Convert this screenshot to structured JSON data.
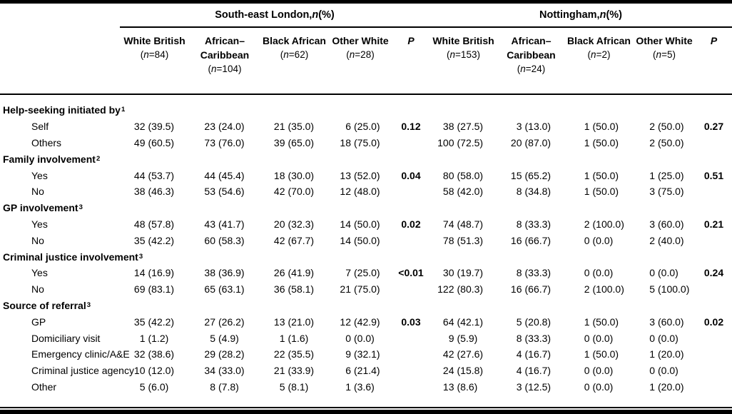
{
  "table": {
    "regions": [
      {
        "title": "South-east London, n (%)",
        "p_label": "P",
        "columns": [
          {
            "name": "White British",
            "n": "(n=84)"
          },
          {
            "name": "African–Caribbean",
            "n": "(n=104)"
          },
          {
            "name": "Black African",
            "n": "(n=62)"
          },
          {
            "name": "Other White",
            "n": "(n=28)"
          }
        ]
      },
      {
        "title": "Nottingham, n (%)",
        "p_label": "P",
        "columns": [
          {
            "name": "White British",
            "n": "(n=153)"
          },
          {
            "name": "African–Caribbean",
            "n": "(n=24)"
          },
          {
            "name": "Black African",
            "n": "(n=2)"
          },
          {
            "name": "Other White",
            "n": "(n=5)"
          }
        ]
      }
    ],
    "sections": [
      {
        "label": "Help-seeking initiated by",
        "footnote": "1",
        "rows": [
          {
            "label": "Self",
            "sel": [
              [
                "32",
                "(39.5)"
              ],
              [
                "23",
                "(24.0)"
              ],
              [
                "21",
                "(35.0)"
              ],
              [
                "6",
                "(25.0)"
              ]
            ],
            "p_sel": "0.12",
            "nott": [
              [
                "38",
                "(27.5)"
              ],
              [
                "3",
                "(13.0)"
              ],
              [
                "1",
                "(50.0)"
              ],
              [
                "2",
                "(50.0)"
              ]
            ],
            "p_nott": "0.27"
          },
          {
            "label": "Others",
            "sel": [
              [
                "49",
                "(60.5)"
              ],
              [
                "73",
                "(76.0)"
              ],
              [
                "39",
                "(65.0)"
              ],
              [
                "18",
                "(75.0)"
              ]
            ],
            "p_sel": "",
            "nott": [
              [
                "100",
                "(72.5)"
              ],
              [
                "20",
                "(87.0)"
              ],
              [
                "1",
                "(50.0)"
              ],
              [
                "2",
                "(50.0)"
              ]
            ],
            "p_nott": ""
          }
        ]
      },
      {
        "label": "Family involvement",
        "footnote": "2",
        "rows": [
          {
            "label": "Yes",
            "sel": [
              [
                "44",
                "(53.7)"
              ],
              [
                "44",
                "(45.4)"
              ],
              [
                "18",
                "(30.0)"
              ],
              [
                "13",
                "(52.0)"
              ]
            ],
            "p_sel": "0.04",
            "nott": [
              [
                "80",
                "(58.0)"
              ],
              [
                "15",
                "(65.2)"
              ],
              [
                "1",
                "(50.0)"
              ],
              [
                "1",
                "(25.0)"
              ]
            ],
            "p_nott": "0.51"
          },
          {
            "label": "No",
            "sel": [
              [
                "38",
                "(46.3)"
              ],
              [
                "53",
                "(54.6)"
              ],
              [
                "42",
                "(70.0)"
              ],
              [
                "12",
                "(48.0)"
              ]
            ],
            "p_sel": "",
            "nott": [
              [
                "58",
                "(42.0)"
              ],
              [
                "8",
                "(34.8)"
              ],
              [
                "1",
                "(50.0)"
              ],
              [
                "3",
                "(75.0)"
              ]
            ],
            "p_nott": ""
          }
        ]
      },
      {
        "label": "GP involvement",
        "footnote": "3",
        "rows": [
          {
            "label": "Yes",
            "sel": [
              [
                "48",
                "(57.8)"
              ],
              [
                "43",
                "(41.7)"
              ],
              [
                "20",
                "(32.3)"
              ],
              [
                "14",
                "(50.0)"
              ]
            ],
            "p_sel": "0.02",
            "nott": [
              [
                "74",
                "(48.7)"
              ],
              [
                "8",
                "(33.3)"
              ],
              [
                "2",
                "(100.0)"
              ],
              [
                "3",
                "(60.0)"
              ]
            ],
            "p_nott": "0.21"
          },
          {
            "label": "No",
            "sel": [
              [
                "35",
                "(42.2)"
              ],
              [
                "60",
                "(58.3)"
              ],
              [
                "42",
                "(67.7)"
              ],
              [
                "14",
                "(50.0)"
              ]
            ],
            "p_sel": "",
            "nott": [
              [
                "78",
                "(51.3)"
              ],
              [
                "16",
                "(66.7)"
              ],
              [
                "0",
                "(0.0)"
              ],
              [
                "2",
                "(40.0)"
              ]
            ],
            "p_nott": ""
          }
        ]
      },
      {
        "label": "Criminal justice involvement",
        "footnote": "3",
        "rows": [
          {
            "label": "Yes",
            "sel": [
              [
                "14",
                "(16.9)"
              ],
              [
                "38",
                "(36.9)"
              ],
              [
                "26",
                "(41.9)"
              ],
              [
                "7",
                "(25.0)"
              ]
            ],
            "p_sel": "<0.01",
            "nott": [
              [
                "30",
                "(19.7)"
              ],
              [
                "8",
                "(33.3)"
              ],
              [
                "0",
                "(0.0)"
              ],
              [
                "0",
                "(0.0)"
              ]
            ],
            "p_nott": "0.24"
          },
          {
            "label": "No",
            "sel": [
              [
                "69",
                "(83.1)"
              ],
              [
                "65",
                "(63.1)"
              ],
              [
                "36",
                "(58.1)"
              ],
              [
                "21",
                "(75.0)"
              ]
            ],
            "p_sel": "",
            "nott": [
              [
                "122",
                "(80.3)"
              ],
              [
                "16",
                "(66.7)"
              ],
              [
                "2",
                "(100.0)"
              ],
              [
                "5",
                "(100.0)"
              ]
            ],
            "p_nott": ""
          }
        ]
      },
      {
        "label": "Source of referral",
        "footnote": "3",
        "rows": [
          {
            "label": "GP",
            "sel": [
              [
                "35",
                "(42.2)"
              ],
              [
                "27",
                "(26.2)"
              ],
              [
                "13",
                "(21.0)"
              ],
              [
                "12",
                "(42.9)"
              ]
            ],
            "p_sel": "0.03",
            "nott": [
              [
                "64",
                "(42.1)"
              ],
              [
                "5",
                "(20.8)"
              ],
              [
                "1",
                "(50.0)"
              ],
              [
                "3",
                "(60.0)"
              ]
            ],
            "p_nott": "0.02"
          },
          {
            "label": "Domiciliary visit",
            "sel": [
              [
                "1",
                "(1.2)"
              ],
              [
                "5",
                "(4.9)"
              ],
              [
                "1",
                "(1.6)"
              ],
              [
                "0",
                "(0.0)"
              ]
            ],
            "p_sel": "",
            "nott": [
              [
                "9",
                "(5.9)"
              ],
              [
                "8",
                "(33.3)"
              ],
              [
                "0",
                "(0.0)"
              ],
              [
                "0",
                "(0.0)"
              ]
            ],
            "p_nott": ""
          },
          {
            "label": "Emergency clinic/A&E",
            "sel": [
              [
                "32",
                "(38.6)"
              ],
              [
                "29",
                "(28.2)"
              ],
              [
                "22",
                "(35.5)"
              ],
              [
                "9",
                "(32.1)"
              ]
            ],
            "p_sel": "",
            "nott": [
              [
                "42",
                "(27.6)"
              ],
              [
                "4",
                "(16.7)"
              ],
              [
                "1",
                "(50.0)"
              ],
              [
                "1",
                "(20.0)"
              ]
            ],
            "p_nott": ""
          },
          {
            "label": "Criminal justice agency",
            "sel": [
              [
                "10",
                "(12.0)"
              ],
              [
                "34",
                "(33.0)"
              ],
              [
                "21",
                "(33.9)"
              ],
              [
                "6",
                "(21.4)"
              ]
            ],
            "p_sel": "",
            "nott": [
              [
                "24",
                "(15.8)"
              ],
              [
                "4",
                "(16.7)"
              ],
              [
                "0",
                "(0.0)"
              ],
              [
                "0",
                "(0.0)"
              ]
            ],
            "p_nott": ""
          },
          {
            "label": "Other",
            "sel": [
              [
                "5",
                "(6.0)"
              ],
              [
                "8",
                "(7.8)"
              ],
              [
                "5",
                "(8.1)"
              ],
              [
                "1",
                "(3.6)"
              ]
            ],
            "p_sel": "",
            "nott": [
              [
                "13",
                "(8.6)"
              ],
              [
                "3",
                "(12.5)"
              ],
              [
                "0",
                "(0.0)"
              ],
              [
                "1",
                "(20.0)"
              ]
            ],
            "p_nott": ""
          }
        ]
      }
    ]
  },
  "colors": {
    "text": "#000000",
    "background": "#ffffff",
    "rule": "#000000"
  }
}
